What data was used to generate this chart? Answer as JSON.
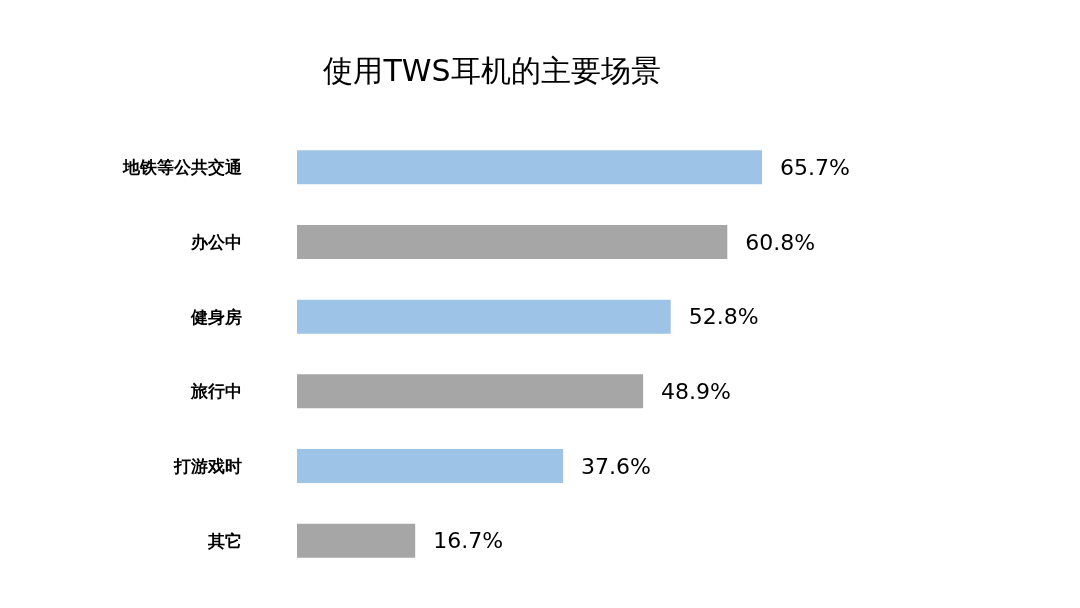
{
  "chart_data": {
    "type": "bar",
    "orientation": "horizontal",
    "title": "使用TWS耳机的主要场景",
    "categories": [
      "地铁等公共交通",
      "办公中",
      "健身房",
      "旅行中",
      "打游戏时",
      "其它"
    ],
    "values": [
      65.7,
      60.8,
      52.8,
      48.9,
      37.6,
      16.7
    ],
    "value_labels": [
      "65.7%",
      "60.8%",
      "52.8%",
      "48.9%",
      "37.6%",
      "16.7%"
    ],
    "colors": [
      "#9dc3e6",
      "#a6a6a6",
      "#9dc3e6",
      "#a6a6a6",
      "#9dc3e6",
      "#a6a6a6"
    ]
  }
}
